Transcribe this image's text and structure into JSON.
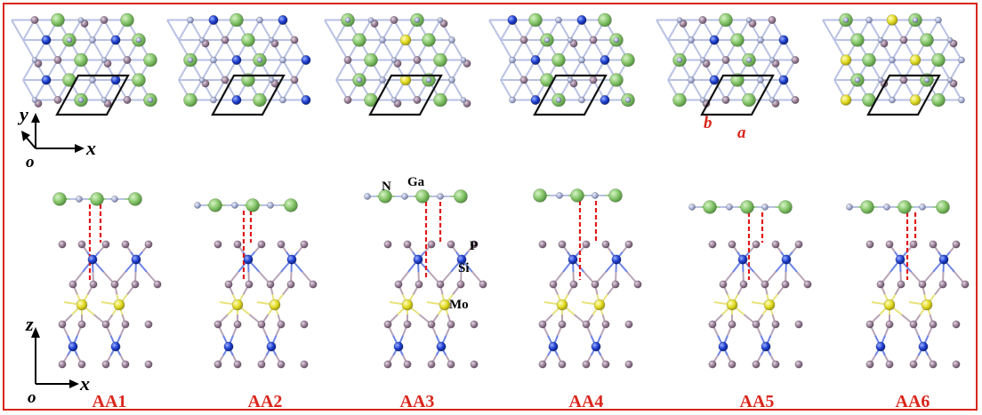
{
  "panels": [
    {
      "label": "AA1"
    },
    {
      "label": "AA2"
    },
    {
      "label": "AA3"
    },
    {
      "label": "AA4"
    },
    {
      "label": "AA5"
    },
    {
      "label": "AA6"
    }
  ],
  "top_axes": {
    "x": "x",
    "y": "y",
    "origin": "o"
  },
  "side_axes": {
    "x": "x",
    "z": "z",
    "origin": "o"
  },
  "atom_labels": {
    "n": "N",
    "ga": "Ga",
    "p": "P",
    "si": "Si",
    "mo": "Mo"
  },
  "lattice_labels": {
    "a": "a",
    "b": "b"
  },
  "colors": {
    "frame": "#d9261c",
    "label": "#d9261c",
    "ga": "#86c66a",
    "n": "#a9b2d6",
    "p": "#9a7f98",
    "si": "#1c3fcf",
    "mo": "#e2dc22",
    "bond_dashed": "#e01818"
  }
}
